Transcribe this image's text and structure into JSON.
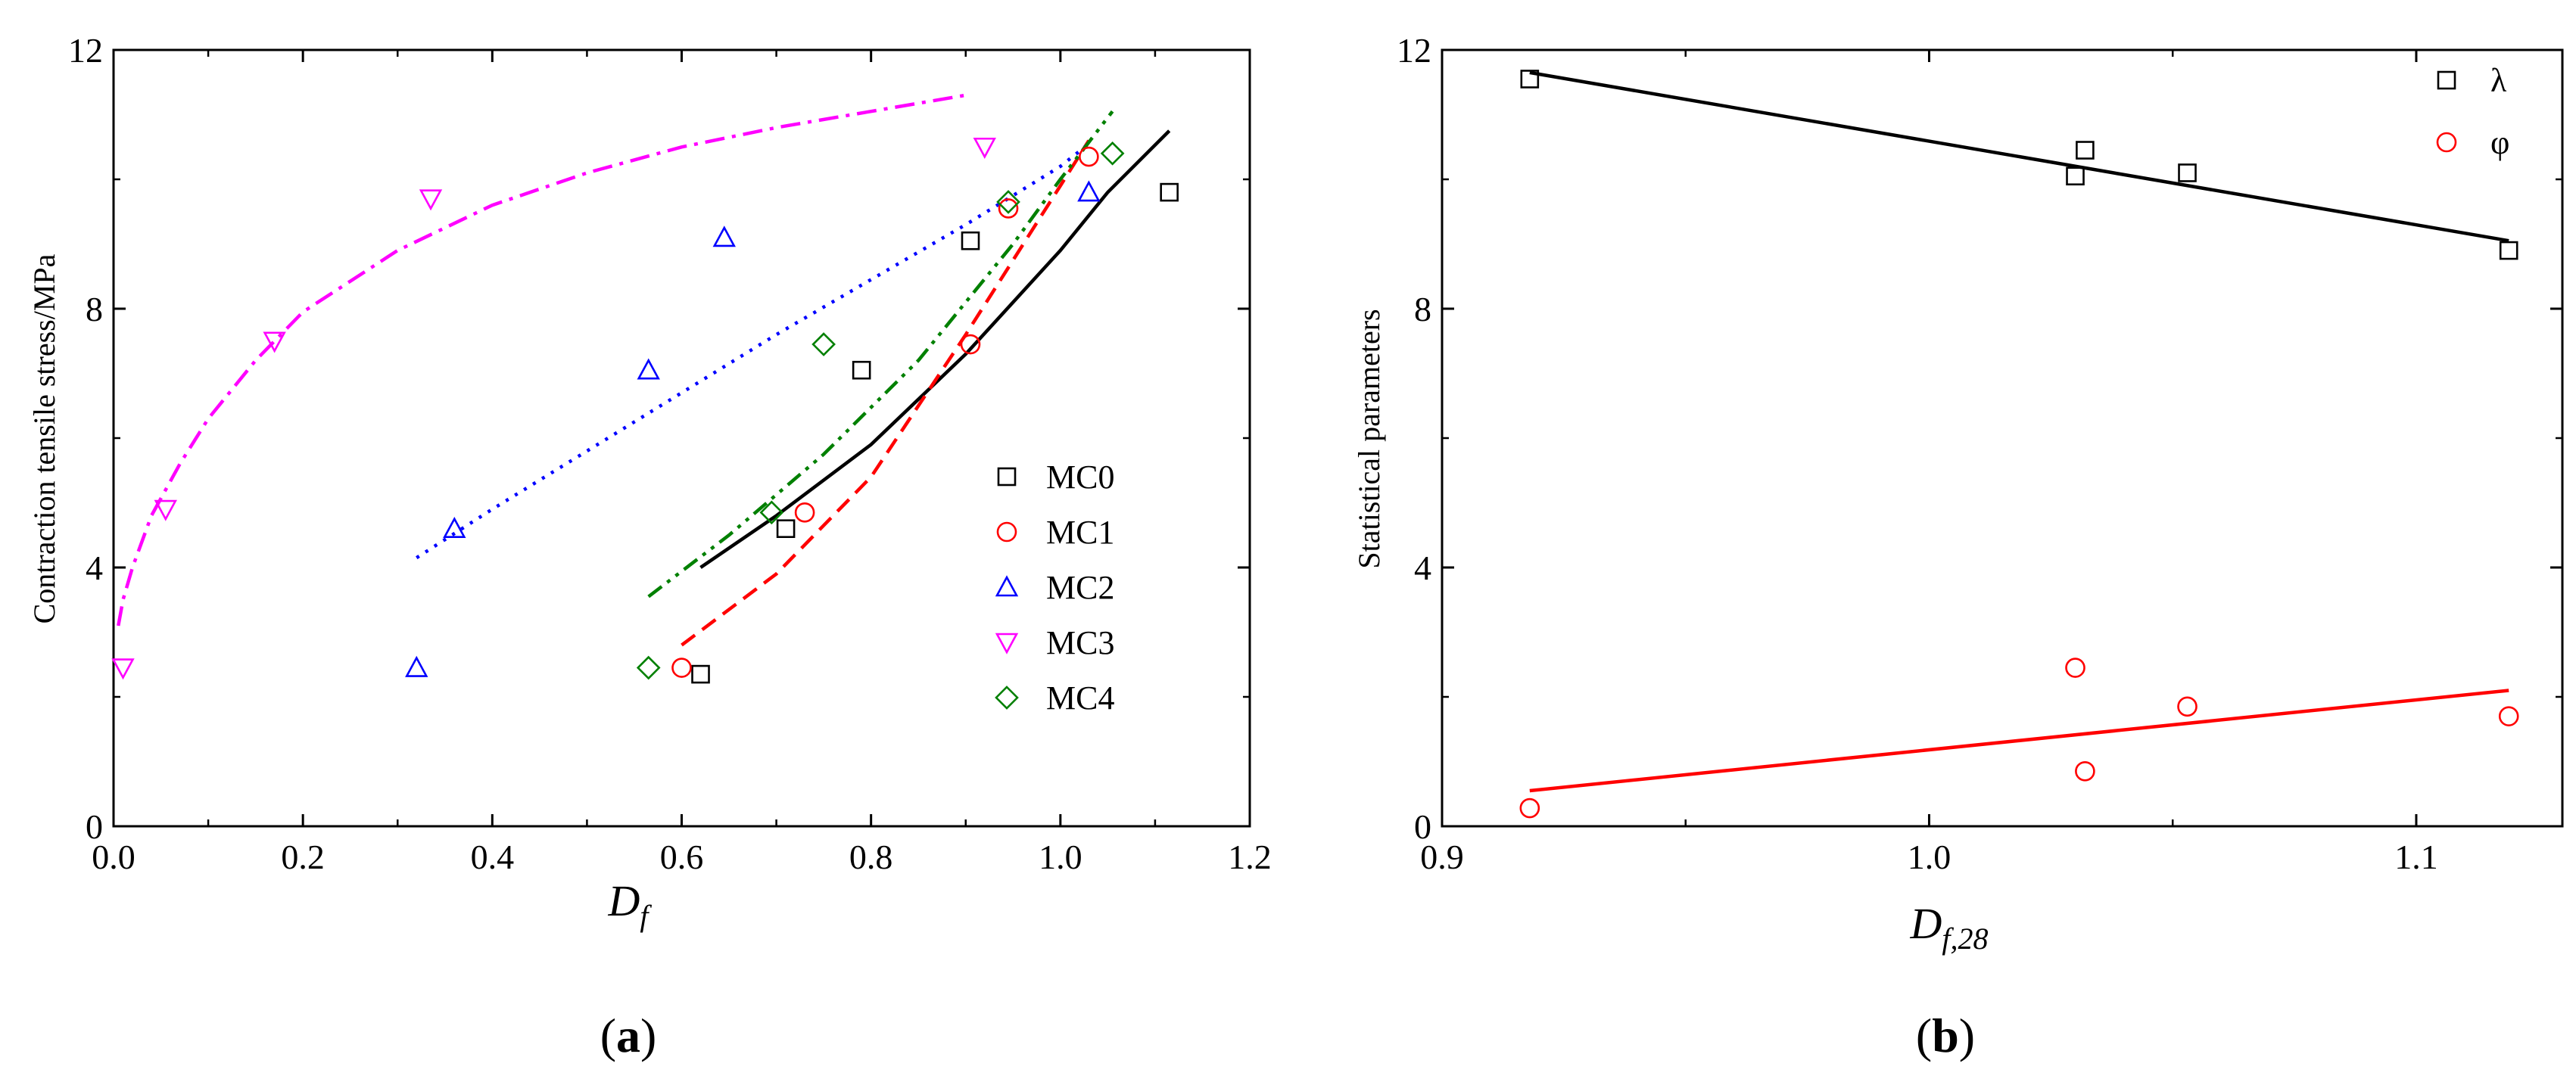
{
  "colors": {
    "MC0": "#000000",
    "MC1": "#ff0000",
    "MC2": "#0000ff",
    "MC3": "#ff00ff",
    "MC4": "#008000",
    "lambda": "#000000",
    "phi": "#ff0000"
  },
  "chart_data": [
    {
      "type": "scatter",
      "panel_label": "(a)",
      "panel_label_parts": {
        "open": "(",
        "letter": "a",
        "close": ")"
      },
      "title": "",
      "xlabel": "Df",
      "xlabel_main": "D",
      "xlabel_sub": "f",
      "ylabel": "Contraction tensile stress/MPa",
      "xlim": [
        0.0,
        1.2
      ],
      "ylim": [
        0,
        12
      ],
      "xticks": [
        0.0,
        0.2,
        0.4,
        0.6,
        0.8,
        1.0,
        1.2
      ],
      "xtick_labels": [
        "0.0",
        "0.2",
        "0.4",
        "0.6",
        "0.8",
        "1.0",
        "1.2"
      ],
      "yticks": [
        0,
        4,
        8,
        12
      ],
      "ytick_labels": [
        "0",
        "4",
        "8",
        "12"
      ],
      "grid": false,
      "legend_position": "right",
      "series": [
        {
          "name": "MC0",
          "marker": "square",
          "color": "#000000",
          "line": "solid",
          "points": [
            [
              0.62,
              2.35
            ],
            [
              0.71,
              4.6
            ],
            [
              0.79,
              7.05
            ],
            [
              0.905,
              9.05
            ],
            [
              1.115,
              9.8
            ]
          ],
          "fit": [
            [
              0.62,
              4.0
            ],
            [
              0.7,
              4.8
            ],
            [
              0.8,
              5.9
            ],
            [
              0.9,
              7.3
            ],
            [
              1.0,
              8.9
            ],
            [
              1.05,
              9.8
            ],
            [
              1.115,
              10.75
            ]
          ]
        },
        {
          "name": "MC1",
          "marker": "circle",
          "color": "#ff0000",
          "line": "dashed",
          "points": [
            [
              0.6,
              2.45
            ],
            [
              0.73,
              4.85
            ],
            [
              0.905,
              7.45
            ],
            [
              0.945,
              9.55
            ],
            [
              1.03,
              10.35
            ]
          ],
          "fit": [
            [
              0.6,
              2.8
            ],
            [
              0.7,
              3.9
            ],
            [
              0.8,
              5.4
            ],
            [
              0.9,
              7.6
            ],
            [
              1.0,
              9.9
            ],
            [
              1.03,
              10.6
            ]
          ]
        },
        {
          "name": "MC2",
          "marker": "triangle-up",
          "color": "#0000ff",
          "line": "dotted",
          "points": [
            [
              0.32,
              2.45
            ],
            [
              0.36,
              4.6
            ],
            [
              0.565,
              7.05
            ],
            [
              0.645,
              9.1
            ],
            [
              1.03,
              9.8
            ]
          ],
          "fit": [
            [
              0.32,
              4.15
            ],
            [
              0.4,
              4.9
            ],
            [
              0.5,
              5.8
            ],
            [
              0.6,
              6.7
            ],
            [
              0.7,
              7.6
            ],
            [
              0.8,
              8.45
            ],
            [
              0.9,
              9.3
            ],
            [
              1.0,
              10.2
            ],
            [
              1.03,
              10.55
            ]
          ]
        },
        {
          "name": "MC3",
          "marker": "triangle-down",
          "color": "#ff00ff",
          "line": "dashdot",
          "points": [
            [
              0.01,
              2.45
            ],
            [
              0.055,
              4.9
            ],
            [
              0.17,
              7.5
            ],
            [
              0.335,
              9.7
            ],
            [
              0.92,
              10.5
            ]
          ],
          "fit": [
            [
              0.005,
              3.1
            ],
            [
              0.01,
              3.5
            ],
            [
              0.02,
              4.0
            ],
            [
              0.04,
              4.8
            ],
            [
              0.07,
              5.6
            ],
            [
              0.1,
              6.3
            ],
            [
              0.15,
              7.2
            ],
            [
              0.2,
              7.95
            ],
            [
              0.3,
              8.9
            ],
            [
              0.4,
              9.6
            ],
            [
              0.5,
              10.1
            ],
            [
              0.6,
              10.5
            ],
            [
              0.7,
              10.8
            ],
            [
              0.8,
              11.05
            ],
            [
              0.9,
              11.3
            ]
          ]
        },
        {
          "name": "MC4",
          "marker": "diamond",
          "color": "#008000",
          "line": "dashdotdot",
          "points": [
            [
              0.565,
              2.45
            ],
            [
              0.695,
              4.85
            ],
            [
              0.75,
              7.45
            ],
            [
              0.945,
              9.65
            ],
            [
              1.055,
              10.4
            ]
          ],
          "fit": [
            [
              0.565,
              3.55
            ],
            [
              0.65,
              4.5
            ],
            [
              0.75,
              5.75
            ],
            [
              0.85,
              7.2
            ],
            [
              0.95,
              9.0
            ],
            [
              1.0,
              10.0
            ],
            [
              1.055,
              11.05
            ]
          ]
        }
      ]
    },
    {
      "type": "scatter",
      "panel_label": "(b)",
      "panel_label_parts": {
        "open": "(",
        "letter": "b",
        "close": ")"
      },
      "title": "",
      "xlabel": "Df,28",
      "xlabel_main": "D",
      "xlabel_sub": "f,28",
      "ylabel": "Statistical parameters",
      "xlim": [
        0.9,
        1.13
      ],
      "ylim": [
        0,
        12
      ],
      "xticks": [
        0.9,
        1.0,
        1.1
      ],
      "xtick_labels": [
        "0.9",
        "1.0",
        "1.1"
      ],
      "yticks": [
        0,
        4,
        8,
        12
      ],
      "ytick_labels": [
        "0",
        "4",
        "8",
        "12"
      ],
      "grid": false,
      "legend_position": "top-right",
      "series": [
        {
          "name": "λ",
          "marker": "square",
          "color": "#000000",
          "line": "solid",
          "points": [
            [
              0.918,
              11.55
            ],
            [
              1.03,
              10.05
            ],
            [
              1.032,
              10.45
            ],
            [
              1.053,
              10.1
            ],
            [
              1.119,
              8.9
            ]
          ],
          "fit": [
            [
              0.918,
              11.65
            ],
            [
              1.119,
              9.05
            ]
          ]
        },
        {
          "name": "φ",
          "marker": "circle",
          "color": "#ff0000",
          "line": "solid",
          "points": [
            [
              0.918,
              0.28
            ],
            [
              1.03,
              2.45
            ],
            [
              1.032,
              0.85
            ],
            [
              1.053,
              1.85
            ],
            [
              1.119,
              1.7
            ]
          ],
          "fit": [
            [
              0.918,
              0.55
            ],
            [
              1.119,
              2.1
            ]
          ]
        }
      ]
    }
  ]
}
